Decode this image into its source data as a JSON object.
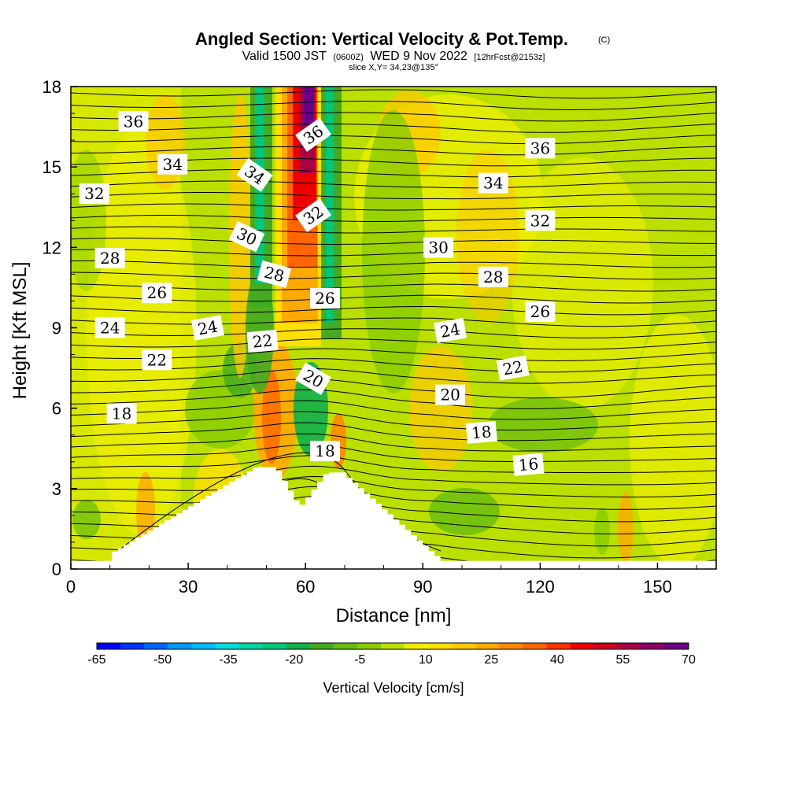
{
  "chart_data": {
    "type": "heatmap",
    "title": "Angled Section: Vertical Velocity & Pot.Temp.",
    "title_tag": "(C)",
    "subtitle": {
      "prefix": "Valid 1500 JST",
      "utc": "(0600Z)",
      "date": "WED 9 Nov 2022",
      "fcst": "[12hrFcst@2153z]"
    },
    "slice": "slice X,Y= 34,23@135°",
    "xlabel": "Distance [nm]",
    "ylabel": "Height [Kft MSL]",
    "xlim": [
      0,
      165
    ],
    "ylim": [
      0,
      18
    ],
    "x_ticks": [
      "0",
      "30",
      "60",
      "90",
      "120",
      "150"
    ],
    "y_ticks": [
      "0",
      "3",
      "6",
      "9",
      "12",
      "15",
      "18"
    ],
    "colorbar": {
      "label": "Vertical Velocity [cm/s]",
      "tick_labels": [
        "-65",
        "-50",
        "-35",
        "-20",
        "-5",
        "10",
        "25",
        "40",
        "55",
        "70"
      ],
      "colors": [
        "#0000ff",
        "#0033ff",
        "#0066ff",
        "#0099ff",
        "#00bbff",
        "#00dddd",
        "#00d7a0",
        "#00c878",
        "#11b04a",
        "#44aa22",
        "#66bb11",
        "#88cc00",
        "#bbe000",
        "#eeee00",
        "#ffe000",
        "#ffc800",
        "#ffaa00",
        "#ff8800",
        "#ff6600",
        "#ff3300",
        "#ee0000",
        "#cc0022",
        "#aa0044",
        "#880066",
        "#6a0088"
      ]
    },
    "pot_temp_labels_C": [
      {
        "text": "36",
        "x": 16,
        "y": 16.7,
        "rot": 0
      },
      {
        "text": "34",
        "x": 26,
        "y": 15.1,
        "rot": 0
      },
      {
        "text": "32",
        "x": 6,
        "y": 14.0,
        "rot": 0
      },
      {
        "text": "34",
        "x": 47,
        "y": 14.7,
        "rot": 35
      },
      {
        "text": "36",
        "x": 62,
        "y": 16.2,
        "rot": -35
      },
      {
        "text": "32",
        "x": 62,
        "y": 13.2,
        "rot": -35
      },
      {
        "text": "30",
        "x": 45,
        "y": 12.4,
        "rot": 25
      },
      {
        "text": "28",
        "x": 10,
        "y": 11.6,
        "rot": 0
      },
      {
        "text": "28",
        "x": 52,
        "y": 11.0,
        "rot": 15
      },
      {
        "text": "26",
        "x": 22,
        "y": 10.3,
        "rot": 0
      },
      {
        "text": "26",
        "x": 65,
        "y": 10.1,
        "rot": 0
      },
      {
        "text": "24",
        "x": 10,
        "y": 9.0,
        "rot": 0
      },
      {
        "text": "24",
        "x": 35,
        "y": 9.0,
        "rot": -10
      },
      {
        "text": "22",
        "x": 49,
        "y": 8.5,
        "rot": -5
      },
      {
        "text": "22",
        "x": 22,
        "y": 7.8,
        "rot": 0
      },
      {
        "text": "20",
        "x": 62,
        "y": 7.1,
        "rot": 30
      },
      {
        "text": "18",
        "x": 13,
        "y": 5.8,
        "rot": 0
      },
      {
        "text": "18",
        "x": 65,
        "y": 4.4,
        "rot": 0
      },
      {
        "text": "36",
        "x": 120,
        "y": 15.7,
        "rot": 0
      },
      {
        "text": "34",
        "x": 108,
        "y": 14.4,
        "rot": 0
      },
      {
        "text": "32",
        "x": 120,
        "y": 13.0,
        "rot": 0
      },
      {
        "text": "30",
        "x": 94,
        "y": 12.0,
        "rot": 0
      },
      {
        "text": "28",
        "x": 108,
        "y": 10.9,
        "rot": 0
      },
      {
        "text": "26",
        "x": 120,
        "y": 9.6,
        "rot": 0
      },
      {
        "text": "24",
        "x": 97,
        "y": 8.9,
        "rot": -10
      },
      {
        "text": "22",
        "x": 113,
        "y": 7.5,
        "rot": -10
      },
      {
        "text": "20",
        "x": 97,
        "y": 6.5,
        "rot": 0
      },
      {
        "text": "18",
        "x": 105,
        "y": 5.1,
        "rot": -5
      },
      {
        "text": "16",
        "x": 117,
        "y": 3.9,
        "rot": -5
      }
    ]
  }
}
